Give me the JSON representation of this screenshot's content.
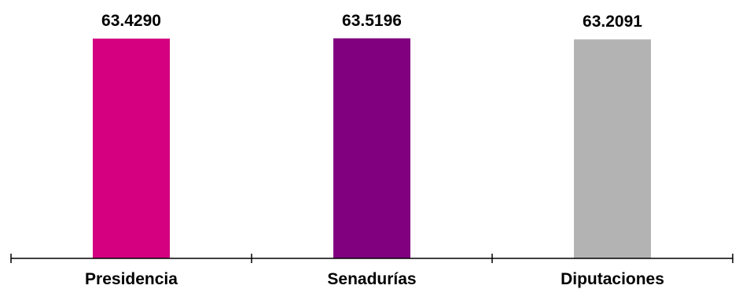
{
  "chart_data": {
    "type": "bar",
    "categories": [
      "Presidencia",
      "Senadurías",
      "Diputaciones"
    ],
    "values": [
      63.429,
      63.5196,
      63.2091
    ],
    "value_labels": [
      "63.4290",
      "63.5196",
      "63.2091"
    ],
    "colors": [
      "#d4007f",
      "#800080",
      "#b3b3b3"
    ],
    "title": "",
    "xlabel": "",
    "ylabel": "",
    "ylim": [
      0,
      63.7
    ],
    "grid": false,
    "legend": "none"
  }
}
